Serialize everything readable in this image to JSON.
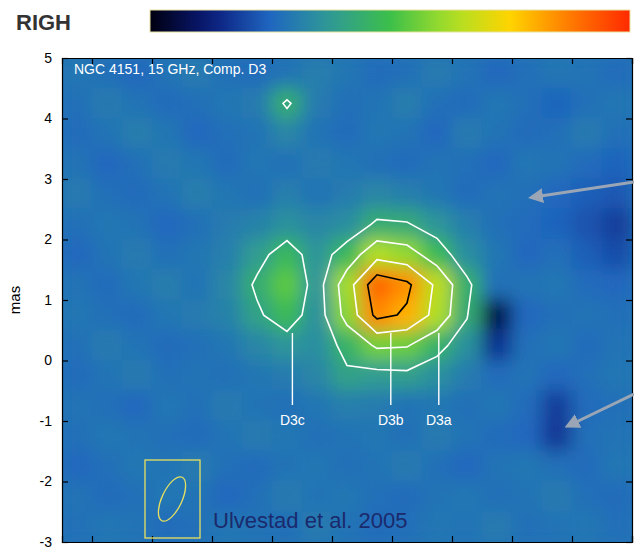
{
  "chart_data": {
    "type": "heatmap",
    "heading": "RIGH",
    "title": "NGC 4151, 15 GHz, Comp. D3",
    "credit": "Ulvestad et al. 2005",
    "ylabel": "mas",
    "xlim": [
      5.5,
      -4.0
    ],
    "xticks": [
      5,
      4,
      3,
      2,
      1,
      0,
      -1,
      -2,
      -3,
      -4
    ],
    "ylim": [
      -3,
      5
    ],
    "yticks": [
      -3,
      -2,
      -1,
      0,
      1,
      2,
      3,
      4,
      5
    ],
    "tick_labels": "y",
    "colorbar": {
      "range": [
        -1,
        10
      ]
    },
    "cells": {
      "x": [
        5.25,
        4.75,
        4.25,
        3.75,
        3.25,
        2.75,
        2.25,
        1.75,
        1.25,
        0.75,
        0.25,
        -0.25,
        -0.75,
        -1.25,
        -1.75,
        -2.25,
        -2.75,
        -3.25,
        -3.75
      ],
      "y": [
        4.75,
        4.25,
        3.75,
        3.25,
        2.75,
        2.25,
        1.75,
        1.25,
        0.75,
        0.25,
        -0.25,
        -0.75,
        -1.25,
        -1.75,
        -2.25,
        -2.75
      ],
      "values": [
        [
          2.2,
          2.0,
          1.8,
          2.1,
          2.3,
          2.0,
          1.9,
          2.1,
          2.4,
          2.2,
          1.9,
          2.0,
          2.3,
          2.1,
          1.8,
          2.0,
          2.2,
          2.1,
          1.9
        ],
        [
          2.0,
          2.3,
          2.1,
          1.9,
          2.0,
          2.2,
          2.3,
          3.8,
          2.3,
          2.0,
          2.1,
          2.4,
          2.0,
          1.9,
          2.2,
          2.0,
          1.7,
          2.0,
          2.2
        ],
        [
          1.9,
          2.1,
          2.4,
          2.2,
          1.8,
          2.0,
          2.1,
          2.6,
          2.1,
          1.9,
          2.2,
          2.1,
          1.8,
          2.3,
          2.1,
          1.9,
          2.0,
          2.3,
          2.0
        ],
        [
          2.1,
          1.8,
          2.0,
          2.3,
          2.2,
          1.9,
          2.2,
          2.0,
          2.3,
          2.2,
          2.0,
          1.9,
          2.1,
          2.0,
          1.8,
          2.2,
          2.1,
          1.9,
          1.7
        ],
        [
          2.3,
          2.0,
          1.9,
          2.1,
          2.4,
          2.2,
          2.0,
          2.4,
          2.1,
          2.3,
          2.6,
          2.4,
          2.2,
          1.9,
          2.1,
          2.0,
          1.8,
          1.6,
          1.5
        ],
        [
          2.0,
          2.2,
          2.1,
          1.8,
          2.0,
          2.3,
          2.5,
          2.9,
          2.6,
          2.8,
          3.8,
          3.7,
          3.0,
          2.4,
          2.0,
          1.9,
          1.7,
          1.4,
          1.0
        ],
        [
          1.8,
          2.1,
          2.3,
          2.0,
          2.2,
          2.4,
          3.2,
          4.2,
          3.0,
          4.2,
          6.0,
          5.6,
          4.3,
          2.8,
          2.2,
          1.8,
          2.0,
          1.6,
          1.3
        ],
        [
          2.1,
          1.9,
          2.2,
          2.4,
          2.1,
          2.6,
          3.8,
          4.9,
          3.0,
          5.8,
          9.0,
          8.3,
          6.2,
          3.9,
          2.0,
          2.1,
          2.2,
          1.9,
          1.8
        ],
        [
          2.2,
          2.0,
          1.9,
          2.2,
          2.3,
          2.5,
          3.4,
          4.3,
          2.9,
          5.5,
          8.4,
          7.8,
          6.0,
          3.7,
          -0.3,
          1.8,
          2.0,
          2.1,
          2.0
        ],
        [
          2.0,
          2.3,
          2.1,
          1.9,
          2.0,
          2.2,
          2.6,
          3.0,
          2.8,
          4.0,
          5.2,
          5.1,
          4.0,
          2.9,
          0.8,
          2.0,
          2.2,
          1.9,
          2.1
        ],
        [
          1.9,
          2.1,
          2.3,
          2.0,
          2.1,
          2.0,
          2.2,
          2.3,
          2.6,
          3.4,
          3.2,
          3.3,
          2.9,
          2.3,
          1.9,
          2.1,
          1.8,
          2.0,
          2.2
        ],
        [
          2.1,
          2.0,
          1.8,
          2.2,
          2.0,
          2.3,
          2.1,
          2.0,
          2.2,
          2.4,
          2.3,
          2.1,
          2.2,
          2.0,
          2.2,
          1.9,
          1.0,
          1.9,
          2.0
        ],
        [
          2.0,
          2.2,
          2.1,
          2.0,
          1.9,
          2.1,
          2.3,
          2.2,
          2.0,
          2.1,
          2.2,
          2.0,
          2.3,
          2.1,
          1.9,
          1.8,
          0.9,
          2.0,
          2.1
        ],
        [
          1.8,
          2.0,
          2.2,
          2.1,
          2.3,
          2.0,
          1.9,
          2.1,
          2.2,
          2.0,
          2.1,
          2.3,
          2.0,
          1.8,
          2.1,
          2.2,
          2.0,
          1.9,
          2.2
        ],
        [
          2.1,
          1.9,
          2.0,
          2.2,
          2.1,
          1.8,
          2.0,
          2.3,
          2.1,
          2.2,
          2.0,
          1.9,
          2.1,
          2.2,
          2.0,
          2.1,
          2.3,
          2.0,
          1.9
        ],
        [
          2.0,
          2.2,
          2.1,
          1.9,
          2.0,
          2.2,
          2.1,
          2.0,
          2.3,
          2.1,
          1.9,
          2.0,
          2.2,
          2.1,
          2.3,
          2.0,
          2.1,
          2.2,
          2.0
        ]
      ]
    },
    "contours": {
      "levels": [
        3.6,
        5,
        6.5,
        8
      ],
      "colors": [
        "#ffffff",
        "#ffffff",
        "#ffffff",
        "#000000"
      ]
    },
    "annotations": [
      {
        "text": "D3c",
        "x": 1.66,
        "y": -1
      },
      {
        "text": "D3b",
        "x": 0.02,
        "y": -1
      },
      {
        "text": "D3a",
        "x": -0.78,
        "y": -1
      }
    ]
  }
}
